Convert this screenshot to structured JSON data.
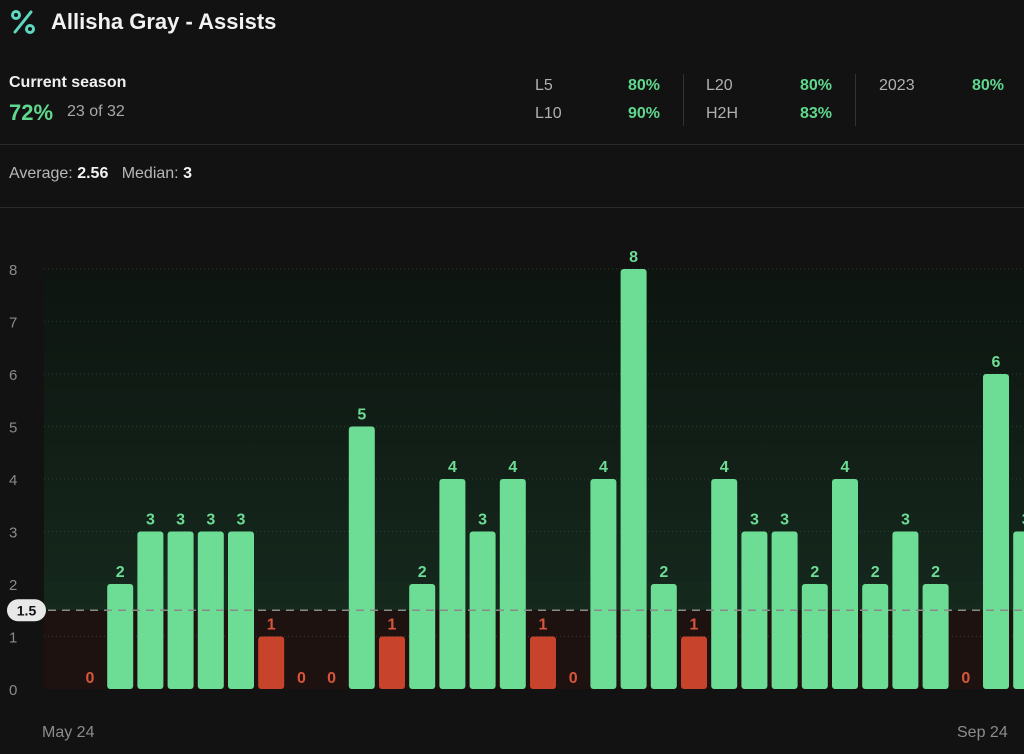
{
  "header": {
    "title": "Allisha Gray - Assists",
    "icon": "percent-icon",
    "accent": "#5fd88e"
  },
  "season": {
    "label": "Current season",
    "pct": "72%",
    "count": "23 of 32"
  },
  "stats": [
    {
      "label": "L5",
      "value": "80%"
    },
    {
      "label": "L10",
      "value": "90%"
    },
    {
      "label": "L20",
      "value": "80%"
    },
    {
      "label": "H2H",
      "value": "83%"
    },
    {
      "label": "2023",
      "value": "80%"
    }
  ],
  "summary": {
    "avg_label": "Average:",
    "avg_value": "2.56",
    "median_label": "Median:",
    "median_value": "3"
  },
  "chart_data": {
    "type": "bar",
    "ylim": [
      0,
      8
    ],
    "yticks": [
      "0",
      "1",
      "2",
      "3",
      "4",
      "5",
      "6",
      "7",
      "8"
    ],
    "line": {
      "value": 1.5,
      "label": "1.5"
    },
    "values": [
      0,
      2,
      3,
      3,
      3,
      3,
      1,
      0,
      0,
      5,
      1,
      2,
      4,
      3,
      4,
      1,
      0,
      4,
      8,
      2,
      1,
      4,
      3,
      3,
      2,
      4,
      2,
      3,
      2,
      0,
      6,
      3
    ],
    "colors": {
      "over": "#6ddc94",
      "under": "#c8432b",
      "zero_label": "#d9553a"
    },
    "x_start_label": "May 24",
    "x_end_label": "Sep 24"
  }
}
